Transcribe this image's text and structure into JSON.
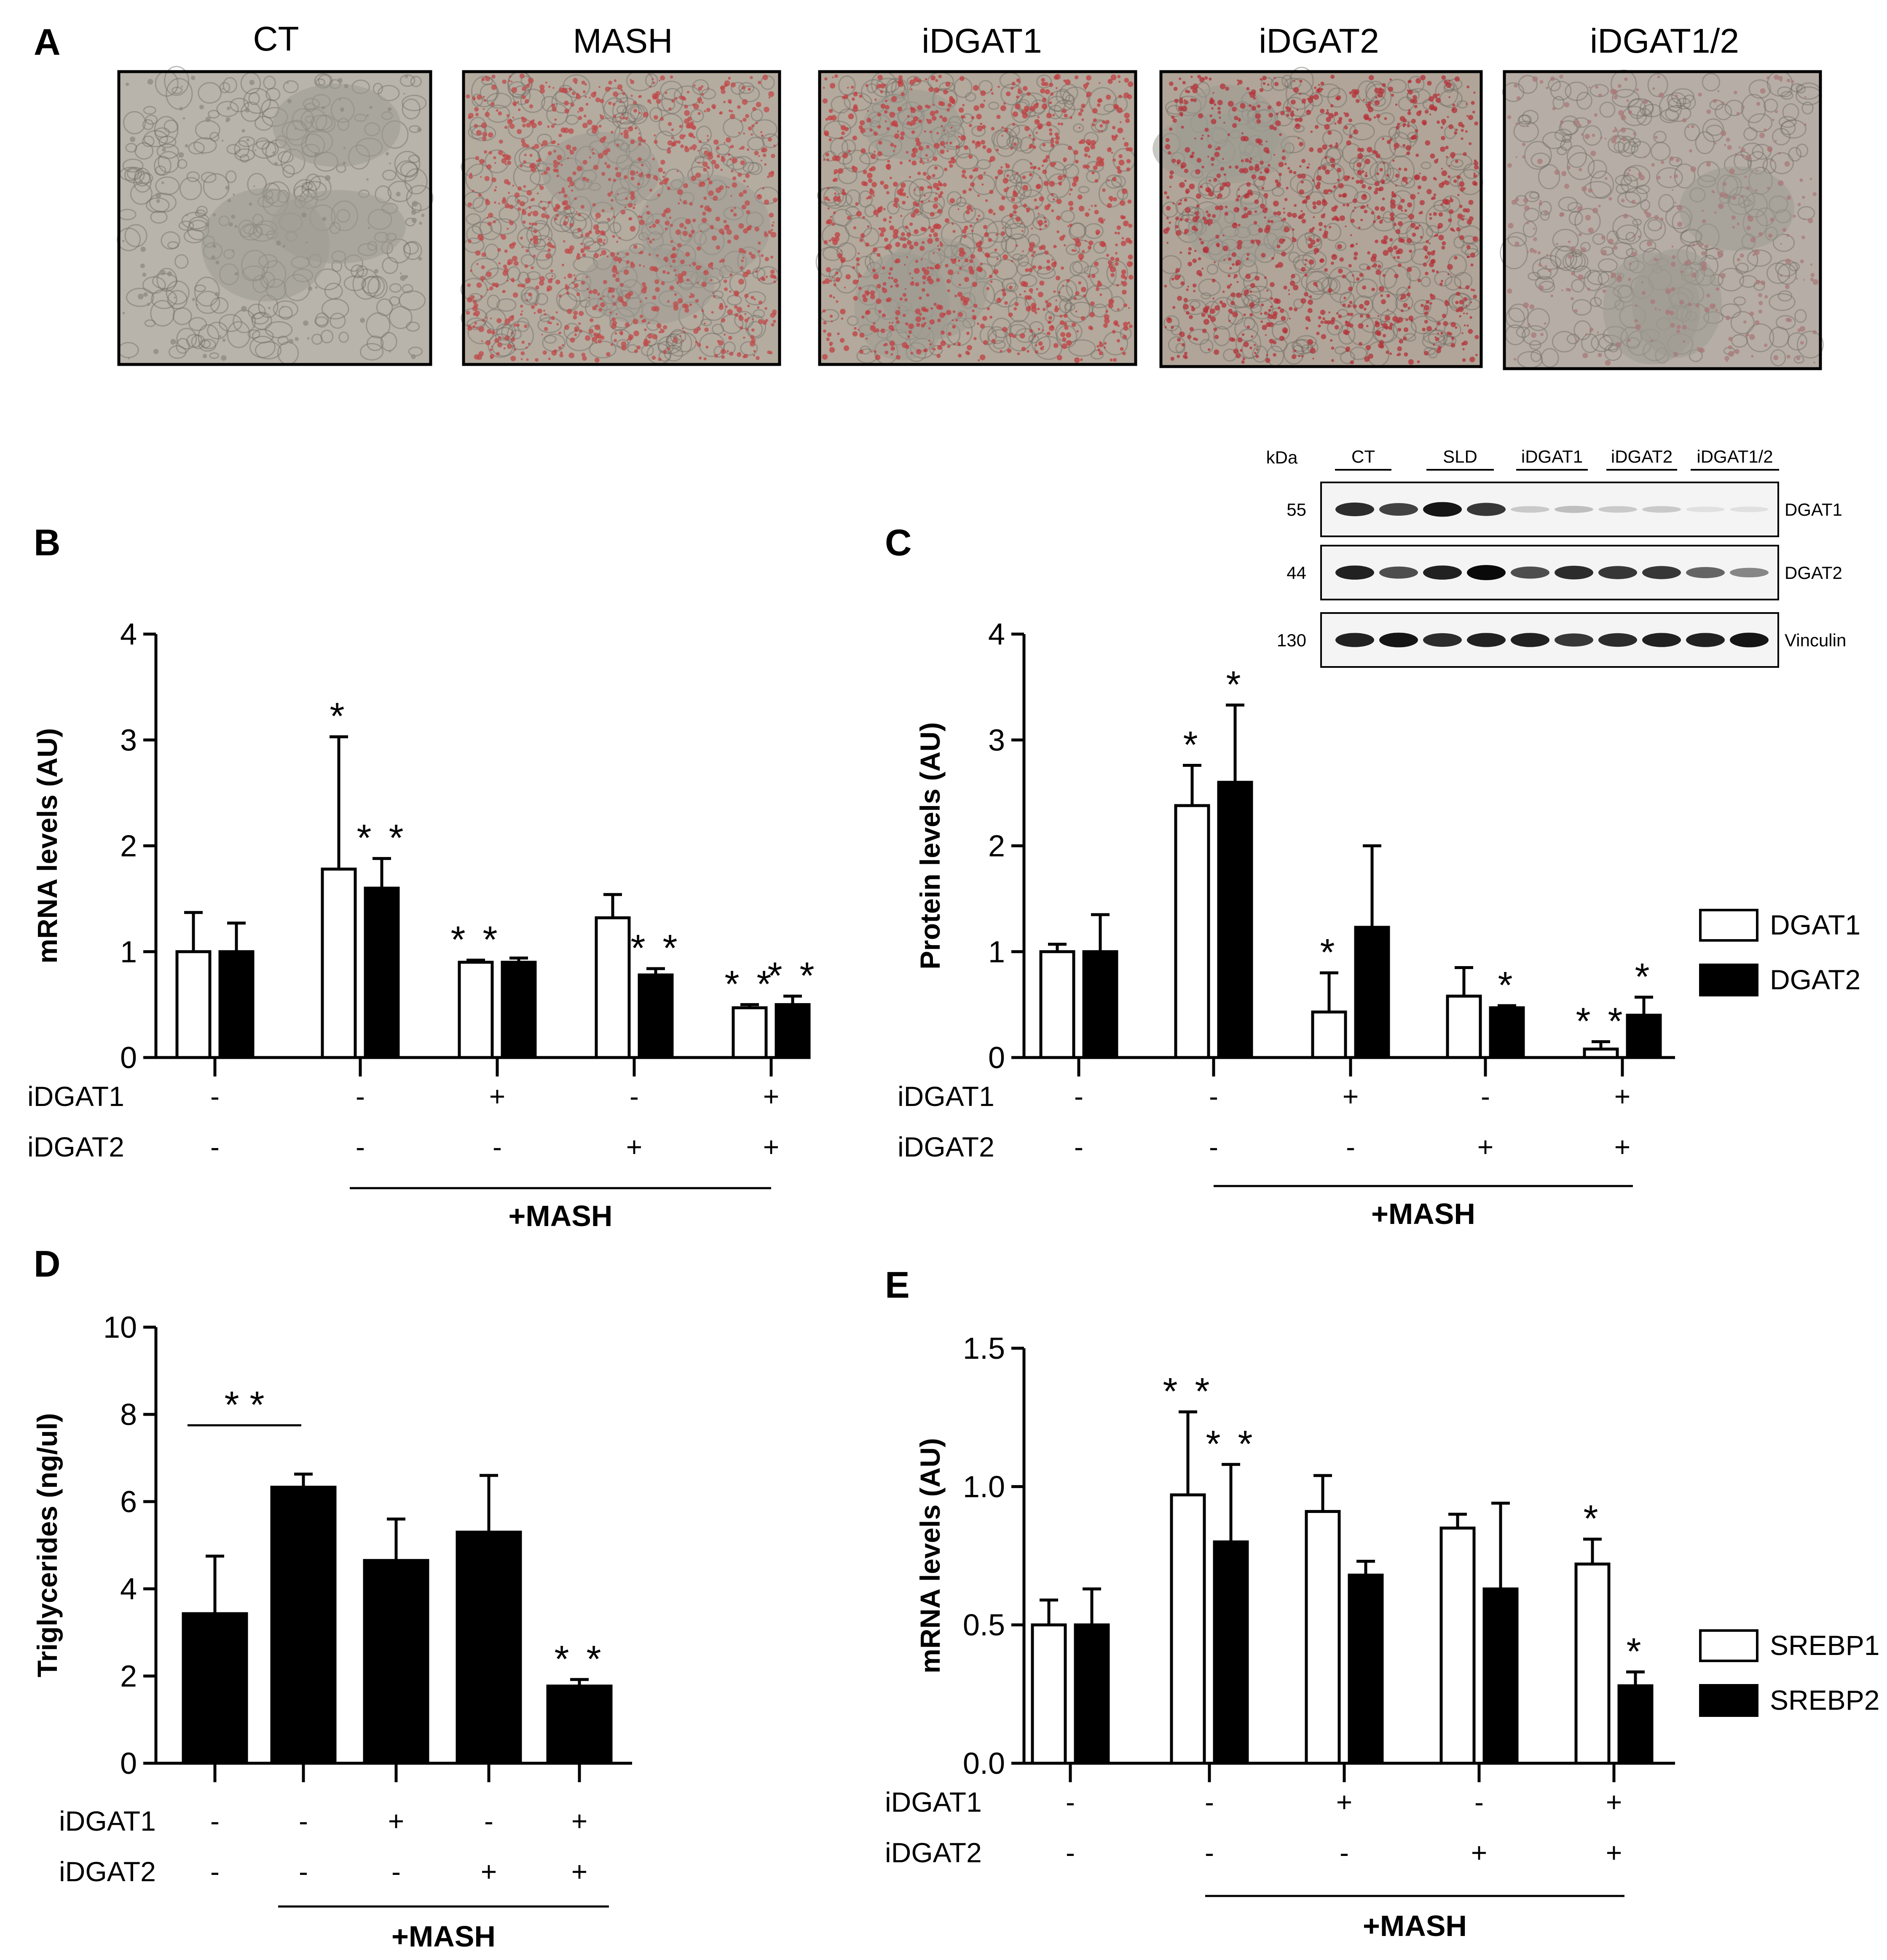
{
  "panels": [
    {
      "key": "B",
      "label": "B"
    },
    {
      "key": "C",
      "label": "C"
    },
    {
      "key": "D",
      "label": "D"
    },
    {
      "key": "E",
      "label": "E"
    }
  ],
  "panel_a": {
    "label": "A",
    "images": [
      {
        "title": "CT",
        "base": "#b8b4ab",
        "dots": "#8c8a82",
        "stain": "none"
      },
      {
        "title": "MASH",
        "base": "#b5aca0",
        "dots": "#c04a4a",
        "stain": "high"
      },
      {
        "title": "iDGAT1",
        "base": "#b3a99c",
        "dots": "#c23f42",
        "stain": "high"
      },
      {
        "title": "iDGAT2",
        "base": "#b0a598",
        "dots": "#b5323a",
        "stain": "high"
      },
      {
        "title": "iDGAT1/2",
        "base": "#b6aea6",
        "dots": "#a87878",
        "stain": "low"
      }
    ]
  },
  "western_blot": {
    "kda_label": "kDa",
    "groups": [
      "CT",
      "SLD",
      "iDGAT1",
      "iDGAT2",
      "iDGAT1/2"
    ],
    "rows": [
      {
        "marker": "55",
        "name": "DGAT1",
        "intensity": [
          0.85,
          0.75,
          0.95,
          0.8,
          0.15,
          0.2,
          0.15,
          0.15,
          0.05,
          0.05
        ]
      },
      {
        "marker": "44",
        "name": "DGAT2",
        "intensity": [
          0.9,
          0.7,
          0.9,
          1.0,
          0.7,
          0.85,
          0.8,
          0.8,
          0.6,
          0.45
        ]
      },
      {
        "marker": "130",
        "name": "Vinculin",
        "intensity": [
          0.9,
          0.95,
          0.85,
          0.9,
          0.9,
          0.8,
          0.85,
          0.9,
          0.9,
          0.95
        ]
      }
    ]
  },
  "colors": {
    "filled": "#000000",
    "open": "#ffffff",
    "line": "#000000"
  },
  "chart_data": [
    {
      "panel": "B",
      "type": "bar",
      "ylabel": "mRNA levels (AU)",
      "ylim": [
        0,
        4
      ],
      "yticks": [
        "0",
        "1",
        "2",
        "3",
        "4"
      ],
      "groups": 5,
      "series": [
        {
          "name": "",
          "fill": "open",
          "values": [
            1.0,
            1.78,
            0.9,
            1.32,
            0.47
          ],
          "errors": [
            0.37,
            1.25,
            0.02,
            0.22,
            0.03
          ],
          "stars": [
            "",
            "*",
            "**",
            "",
            "**"
          ]
        },
        {
          "name": "",
          "fill": "filled",
          "values": [
            1.0,
            1.6,
            0.9,
            0.78,
            0.5
          ],
          "errors": [
            0.27,
            0.28,
            0.04,
            0.06,
            0.08
          ],
          "stars": [
            "",
            "**",
            "",
            "**",
            "**"
          ]
        }
      ],
      "treatments": [
        {
          "label": "iDGAT1",
          "values": [
            "-",
            "-",
            "+",
            "-",
            "+"
          ]
        },
        {
          "label": "iDGAT2",
          "values": [
            "-",
            "-",
            "-",
            "+",
            "+"
          ]
        }
      ],
      "mash_label": "+MASH",
      "legend": []
    },
    {
      "panel": "C",
      "type": "bar",
      "ylabel": "Protein levels (AU)",
      "ylim": [
        0,
        4
      ],
      "yticks": [
        "0",
        "1",
        "2",
        "3",
        "4"
      ],
      "groups": 5,
      "series": [
        {
          "name": "DGAT1",
          "fill": "open",
          "values": [
            1.0,
            2.38,
            0.43,
            0.58,
            0.08
          ],
          "errors": [
            0.07,
            0.38,
            0.37,
            0.27,
            0.07
          ],
          "stars": [
            "",
            "*",
            "*",
            "",
            "**"
          ]
        },
        {
          "name": "DGAT2",
          "fill": "filled",
          "values": [
            1.0,
            2.6,
            1.23,
            0.47,
            0.4
          ],
          "errors": [
            0.35,
            0.73,
            0.77,
            0.02,
            0.17
          ],
          "stars": [
            "",
            "*",
            "",
            "*",
            "*"
          ]
        }
      ],
      "treatments": [
        {
          "label": "iDGAT1",
          "values": [
            "-",
            "-",
            "+",
            "-",
            "+"
          ]
        },
        {
          "label": "iDGAT2",
          "values": [
            "-",
            "-",
            "-",
            "+",
            "+"
          ]
        }
      ],
      "mash_label": "+MASH",
      "legend": [
        "DGAT1",
        "DGAT2"
      ]
    },
    {
      "panel": "D",
      "type": "bar",
      "ylabel": "Triglycerides (ng/ul)",
      "ylim": [
        0,
        10
      ],
      "yticks": [
        "0",
        "2",
        "4",
        "6",
        "8",
        "10"
      ],
      "groups": 5,
      "series": [
        {
          "name": "",
          "fill": "filled",
          "values": [
            3.43,
            6.33,
            4.65,
            5.3,
            1.77
          ],
          "errors": [
            1.32,
            0.3,
            0.95,
            1.3,
            0.15
          ],
          "stars": [
            "",
            "",
            "",
            "",
            "**"
          ]
        }
      ],
      "bracket": {
        "from": 0,
        "to": 1,
        "label": "**"
      },
      "treatments": [
        {
          "label": "iDGAT1",
          "values": [
            "-",
            "-",
            "+",
            "-",
            "+"
          ]
        },
        {
          "label": "iDGAT2",
          "values": [
            "-",
            "-",
            "-",
            "+",
            "+"
          ]
        }
      ],
      "mash_label": "+MASH",
      "legend": []
    },
    {
      "panel": "E",
      "type": "bar",
      "ylabel": "mRNA levels (AU)",
      "ylim": [
        0,
        1.5
      ],
      "yticks": [
        "0.0",
        "0.5",
        "1.0",
        "1.5"
      ],
      "groups": 5,
      "series": [
        {
          "name": "SREBP1",
          "fill": "open",
          "values": [
            0.5,
            0.97,
            0.91,
            0.85,
            0.72
          ],
          "errors": [
            0.09,
            0.3,
            0.13,
            0.05,
            0.09
          ],
          "stars": [
            "",
            "**",
            "",
            "",
            "*"
          ]
        },
        {
          "name": "SREBP2",
          "fill": "filled",
          "values": [
            0.5,
            0.8,
            0.68,
            0.63,
            0.28
          ],
          "errors": [
            0.13,
            0.28,
            0.05,
            0.31,
            0.05
          ],
          "stars": [
            "",
            "**",
            "",
            "",
            "*"
          ]
        }
      ],
      "treatments": [
        {
          "label": "iDGAT1",
          "values": [
            "-",
            "-",
            "+",
            "-",
            "+"
          ]
        },
        {
          "label": "iDGAT2",
          "values": [
            "-",
            "-",
            "-",
            "+",
            "+"
          ]
        }
      ],
      "mash_label": "+MASH",
      "legend": [
        "SREBP1",
        "SREBP2"
      ]
    }
  ]
}
